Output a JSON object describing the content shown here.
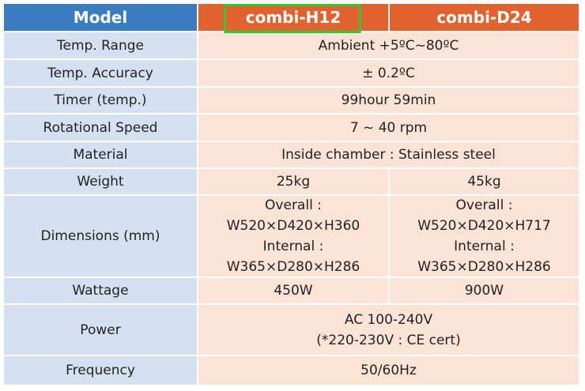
{
  "table": {
    "header": [
      "Model",
      "combi-H12",
      "combi-D24"
    ],
    "rows": [
      {
        "label": "Temp. Range",
        "cells": [
          [
            "Ambient +5ºC~80ºC"
          ]
        ]
      },
      {
        "label": "Temp. Accuracy",
        "cells": [
          [
            "± 0.2ºC"
          ]
        ]
      },
      {
        "label": "Timer (temp.)",
        "cells": [
          [
            "99hour 59min"
          ]
        ]
      },
      {
        "label": "Rotational Speed",
        "cells": [
          [
            "7 ~ 40 rpm"
          ]
        ]
      },
      {
        "label": "Material",
        "cells": [
          [
            "Inside chamber : Stainless steel"
          ]
        ]
      },
      {
        "label": "Weight",
        "cells": [
          [
            "25kg"
          ],
          [
            "45kg"
          ]
        ]
      },
      {
        "label": "Dimensions (mm)",
        "cells": [
          [
            "Overall :",
            "W520×D420×H360",
            "Internal :",
            "W365×D280×H286"
          ],
          [
            "Overall :",
            "W520×D420×H717",
            "Internal :",
            "W365×D280×H286"
          ]
        ]
      },
      {
        "label": "Wattage",
        "cells": [
          [
            "450W"
          ],
          [
            "900W"
          ]
        ]
      },
      {
        "label": "Power",
        "cells": [
          [
            "AC 100-240V",
            "(*220-230V : CE cert)"
          ]
        ]
      },
      {
        "label": "Frequency",
        "cells": [
          [
            "50/60Hz"
          ]
        ]
      }
    ]
  }
}
